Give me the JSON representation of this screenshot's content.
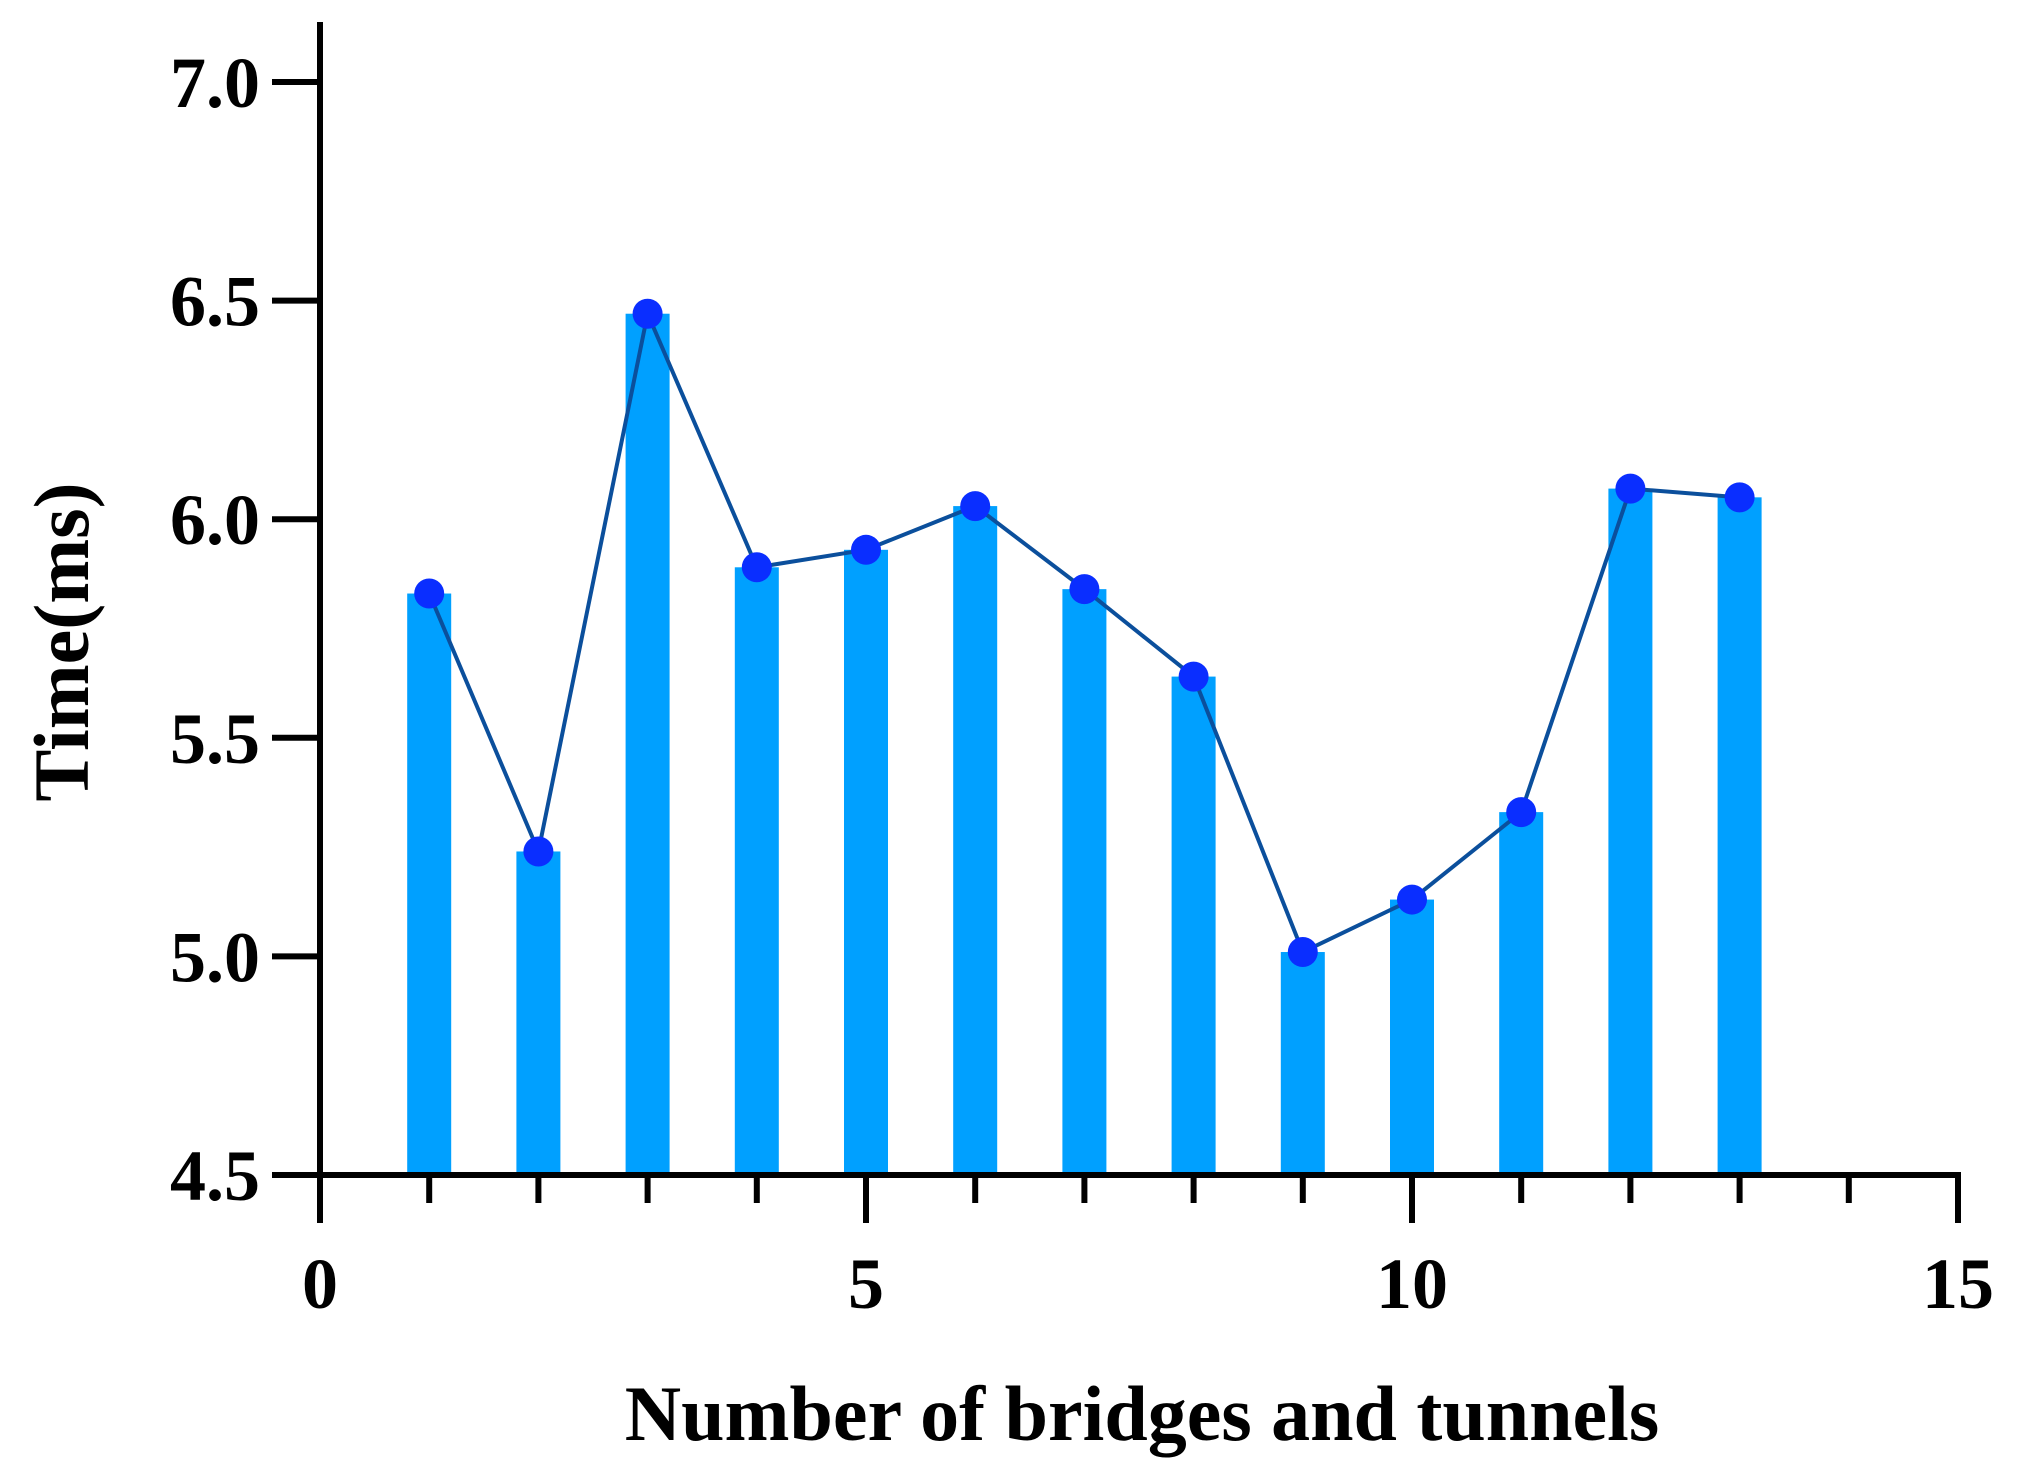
{
  "chart_data": {
    "type": "bar",
    "title": "",
    "xlabel": "Number of bridges and tunnels",
    "ylabel": "Time(ms)",
    "xlim": [
      0,
      15
    ],
    "ylim": [
      4.5,
      7.0
    ],
    "x_ticks": [
      0,
      5,
      10,
      15
    ],
    "x_tick_labels": [
      "0",
      "5",
      "10",
      "15"
    ],
    "x_minor_step": 1,
    "y_ticks": [
      4.5,
      5.0,
      5.5,
      6.0,
      6.5,
      7.0
    ],
    "y_tick_labels": [
      "4.5",
      "5.0",
      "5.5",
      "6.0",
      "6.5",
      "7.0"
    ],
    "grid": false,
    "x": [
      1,
      2,
      3,
      4,
      5,
      6,
      7,
      8,
      9,
      10,
      11,
      12,
      13
    ],
    "values": [
      5.83,
      5.24,
      6.47,
      5.89,
      5.93,
      6.03,
      5.84,
      5.64,
      5.01,
      5.13,
      5.33,
      6.07,
      6.05
    ],
    "overlay": "line-with-markers",
    "colors": {
      "bar": "#00a0ff",
      "line": "#0b4f9c",
      "marker": "#0a2eff",
      "axis": "#000000"
    }
  }
}
